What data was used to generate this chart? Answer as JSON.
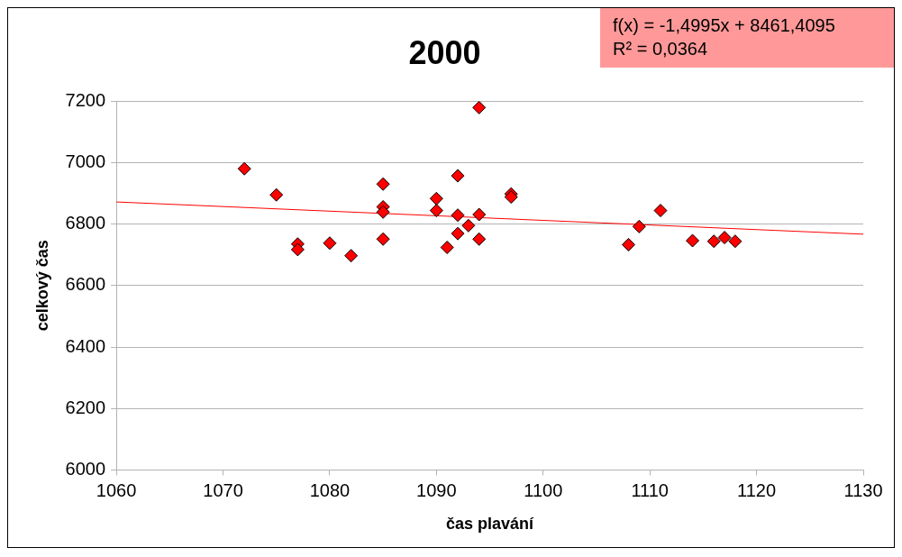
{
  "chart_data": {
    "type": "scatter",
    "title": "2000",
    "xlabel": "čas plavání",
    "ylabel": "celkový čas",
    "annotations": [
      "f(x) = -1,4995x + 8461,4095",
      "R² = 0,0364"
    ],
    "series": [
      {
        "type": "scatter",
        "marker": "diamond",
        "color": "#ff0000",
        "x": [
          1072,
          1075,
          1077,
          1077,
          1080,
          1082,
          1085,
          1085,
          1085,
          1085,
          1090,
          1090,
          1091,
          1092,
          1092,
          1092,
          1093,
          1094,
          1094,
          1094,
          1097,
          1097,
          1108,
          1109,
          1111,
          1114,
          1116,
          1117,
          1118
        ],
        "values": [
          6980,
          6895,
          6735,
          6717,
          6738,
          6697,
          6930,
          6856,
          6839,
          6751,
          6883,
          6844,
          6724,
          6957,
          6829,
          6769,
          6795,
          6831,
          6751,
          7179,
          6898,
          6888,
          6733,
          6792,
          6844,
          6746,
          6744,
          6756,
          6744
        ]
      },
      {
        "type": "line",
        "color": "#ff0000",
        "x": [
          1060,
          1130
        ],
        "values": [
          6872,
          6767
        ]
      }
    ],
    "xlim": [
      1060,
      1130
    ],
    "xticks": [
      1060,
      1070,
      1080,
      1090,
      1100,
      1110,
      1120,
      1130
    ],
    "ylim": [
      6000,
      7200
    ],
    "yticks": [
      6000,
      6200,
      6400,
      6600,
      6800,
      7000,
      7200
    ],
    "grid": "y",
    "legend": false
  }
}
